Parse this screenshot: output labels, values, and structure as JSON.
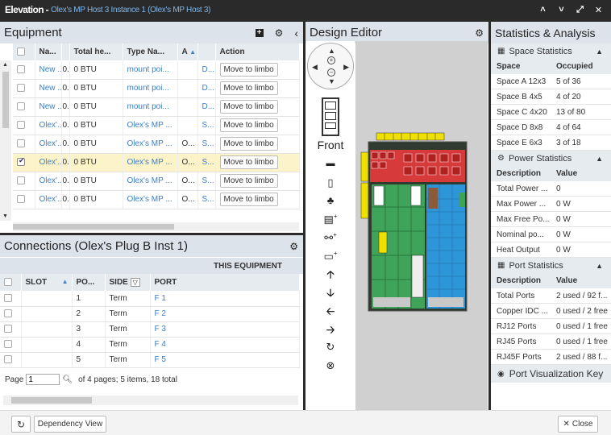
{
  "window": {
    "title_main": "Elevation - ",
    "title_sub": "Olex's MP Host 3 Instance 1 (Olex's MP Host 3)"
  },
  "equipment": {
    "title": "Equipment",
    "columns": [
      "Na...",
      "Total he...",
      "Type Na...",
      "A",
      "Action"
    ],
    "rows": [
      {
        "name": "New ...",
        "n2": "0...",
        "heat": "0 BTU",
        "type": "mount poi...",
        "a": "",
        "d": "D...",
        "action": "Move to limbo",
        "checked": false
      },
      {
        "name": "New ...",
        "n2": "0...",
        "heat": "0 BTU",
        "type": "mount poi...",
        "a": "",
        "d": "D...",
        "action": "Move to limbo",
        "checked": false
      },
      {
        "name": "New ...",
        "n2": "0...",
        "heat": "0 BTU",
        "type": "mount poi...",
        "a": "",
        "d": "D...",
        "action": "Move to limbo",
        "checked": false
      },
      {
        "name": "Olex'...",
        "n2": "0...",
        "heat": "0 BTU",
        "type": "Olex's MP ...",
        "a": "",
        "d": "S...",
        "action": "Move to limbo",
        "checked": false
      },
      {
        "name": "Olex'...",
        "n2": "0...",
        "heat": "0 BTU",
        "type": "Olex's MP ...",
        "a": "O...",
        "d": "S...",
        "action": "Move to limbo",
        "checked": false
      },
      {
        "name": "Olex'...",
        "n2": "0...",
        "heat": "0 BTU",
        "type": "Olex's MP ...",
        "a": "O...",
        "d": "S...",
        "action": "Move to limbo",
        "checked": true
      },
      {
        "name": "Olex'...",
        "n2": "0...",
        "heat": "0 BTU",
        "type": "Olex's MP ...",
        "a": "O...",
        "d": "S...",
        "action": "Move to limbo",
        "checked": false
      },
      {
        "name": "Olex'...",
        "n2": "0...",
        "heat": "0 BTU",
        "type": "Olex's MP ...",
        "a": "O...",
        "d": "S...",
        "action": "Move to limbo",
        "checked": false
      }
    ]
  },
  "connections": {
    "title": "Connections (Olex's Plug B Inst 1)",
    "group_header": "THIS EQUIPMENT",
    "columns": [
      "SLOT",
      "PO...",
      "SIDE",
      "PORT"
    ],
    "rows": [
      {
        "po": "1",
        "side": "Term",
        "port": "F 1"
      },
      {
        "po": "2",
        "side": "Term",
        "port": "F 2"
      },
      {
        "po": "3",
        "side": "Term",
        "port": "F 3"
      },
      {
        "po": "4",
        "side": "Term",
        "port": "F 4"
      },
      {
        "po": "5",
        "side": "Term",
        "port": "F 5"
      }
    ],
    "pager": {
      "label": "Page",
      "value": "1",
      "info": "of 4 pages; 5 items, 18 total"
    }
  },
  "design": {
    "title": "Design Editor",
    "view_label": "Front"
  },
  "stats": {
    "title": "Statistics & Analysis",
    "space": {
      "title": "Space Statistics",
      "h1": "Space",
      "h2": "Occupied",
      "rows": [
        [
          "Space A 12x3",
          "5 of 36"
        ],
        [
          "Space B 4x5",
          "4 of 20"
        ],
        [
          "Space C 4x20",
          "13 of 80"
        ],
        [
          "Space D 8x8",
          "4 of 64"
        ],
        [
          "Space E 6x3",
          "3 of 18"
        ]
      ]
    },
    "power": {
      "title": "Power Statistics",
      "h1": "Description",
      "h2": "Value",
      "rows": [
        [
          "Total Power ...",
          "0"
        ],
        [
          "Max Power ...",
          "0 W"
        ],
        [
          "Max Free Po...",
          "0 W"
        ],
        [
          "Nominal po...",
          "0 W"
        ],
        [
          "Heat Output",
          "0 W"
        ]
      ]
    },
    "port": {
      "title": "Port Statistics",
      "h1": "Description",
      "h2": "Value",
      "rows": [
        [
          "Total Ports",
          "2 used / 92 f..."
        ],
        [
          "Copper IDC ...",
          "0 used / 2 free"
        ],
        [
          "RJ12 Ports",
          "0 used / 1 free"
        ],
        [
          "RJ45 Ports",
          "0 used / 1 free"
        ],
        [
          "RJ45F Ports",
          "2 used / 88 f..."
        ]
      ]
    },
    "viz": {
      "title": "Port Visualization Key"
    }
  },
  "footer": {
    "dependency": "Dependency View",
    "close": "Close"
  }
}
